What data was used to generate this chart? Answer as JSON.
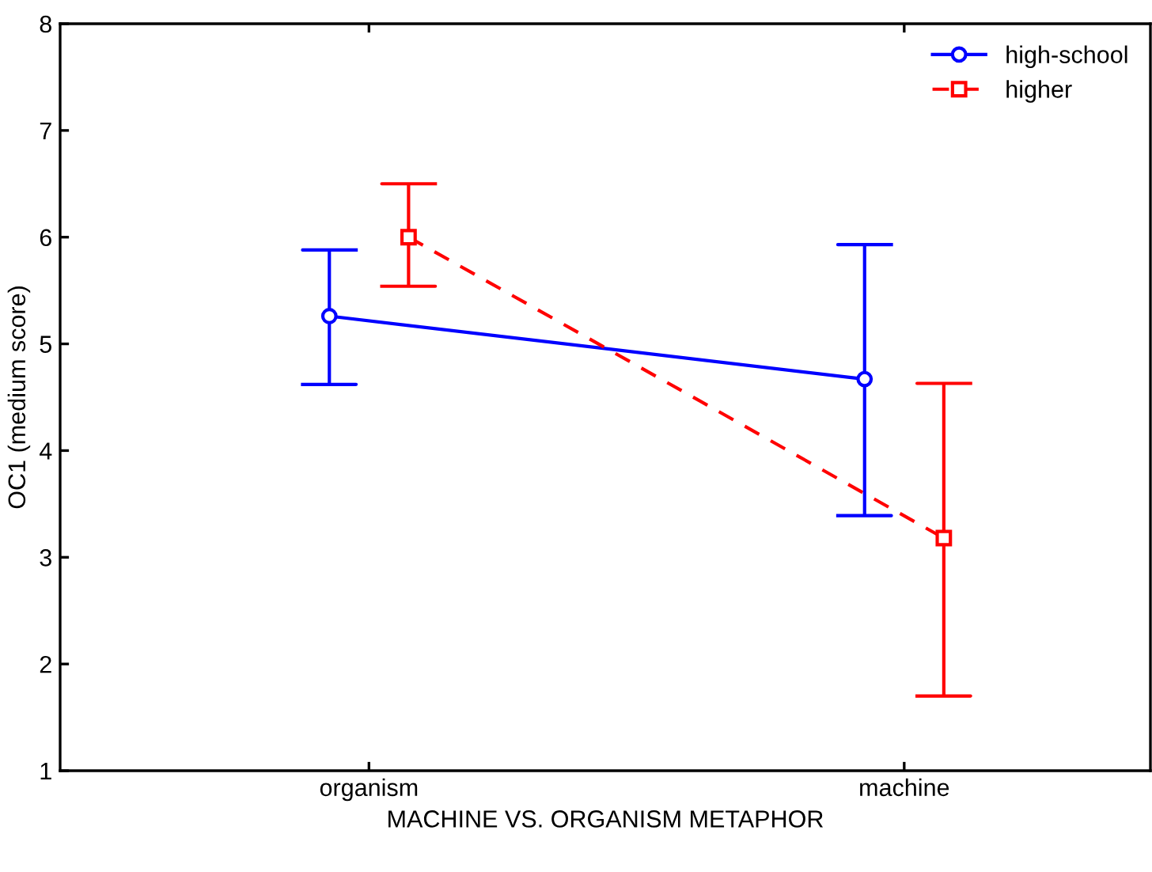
{
  "chart_data": {
    "type": "line",
    "xlabel": "MACHINE VS. ORGANISM METAPHOR",
    "ylabel": "OC1 (medium score)",
    "categories": [
      "organism",
      "machine"
    ],
    "series": [
      {
        "name": "high-school",
        "color": "#0000ff",
        "marker": "circle",
        "line_style": "solid",
        "values": [
          5.26,
          4.67
        ],
        "errors": [
          [
            4.62,
            5.88
          ],
          [
            3.39,
            5.93
          ]
        ]
      },
      {
        "name": "higher",
        "color": "#ff0000",
        "marker": "square",
        "line_style": "dashed",
        "values": [
          6.0,
          3.18
        ],
        "errors": [
          [
            5.54,
            6.5
          ],
          [
            1.7,
            4.63
          ]
        ]
      }
    ],
    "ylim": [
      1,
      8
    ],
    "yticks": [
      1,
      2,
      3,
      4,
      5,
      6,
      7,
      8
    ],
    "grid": false,
    "legend": "top right"
  }
}
